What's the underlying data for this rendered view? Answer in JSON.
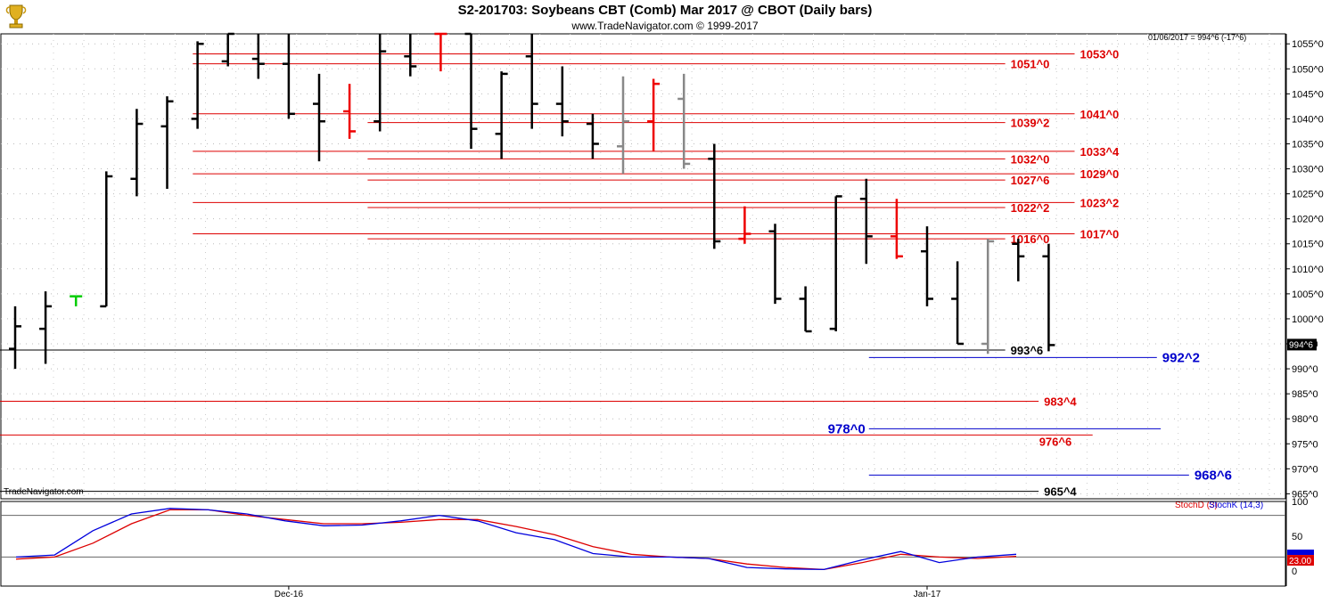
{
  "header": {
    "title": "S2-201703:  Soybeans CBT (Comb) Mar 2017 @ CBOT  (Daily bars)",
    "subtitle": "www.TradeNavigator.com © 1999-2017",
    "readout": "01/06/2017 = 994^6 (-17^6)",
    "watermark": "TradeNavigator.com",
    "logo": "trophy-icon"
  },
  "colors": {
    "up": "#000000",
    "red": "#ee0000",
    "grey": "#888888",
    "green": "#00cc00",
    "level_red": "#dd0000",
    "level_blue": "#0000cc",
    "stochD": "#dd0000",
    "stochK": "#0000dd"
  },
  "chart_data": {
    "type": "ohlc",
    "price_axis": {
      "min": 964,
      "max": 1057,
      "ticks": [
        "1055^0",
        "1050^0",
        "1045^0",
        "1040^0",
        "1035^0",
        "1030^0",
        "1025^0",
        "1020^0",
        "1015^0",
        "1010^0",
        "1005^0",
        "1000^0",
        "995^0",
        "990^0",
        "985^0",
        "980^0",
        "975^0",
        "970^0",
        "965^0"
      ],
      "tick_values": [
        1055,
        1050,
        1045,
        1040,
        1035,
        1030,
        1025,
        1020,
        1015,
        1010,
        1005,
        1000,
        995,
        990,
        985,
        980,
        975,
        970,
        965
      ]
    },
    "current_price_label": "994^6",
    "x_labels": [
      {
        "label": "Dec-16",
        "bar": 9
      },
      {
        "label": "Jan-17",
        "bar": 30
      }
    ],
    "bars": [
      {
        "o": 994,
        "h": 1002.5,
        "l": 990,
        "c": 998.5,
        "color": "black"
      },
      {
        "o": 998,
        "h": 1005.5,
        "l": 991,
        "c": 1002.5,
        "color": "black"
      },
      {
        "o": 1004.5,
        "h": 1004.5,
        "l": 1002.5,
        "c": 1004.5,
        "color": "green"
      },
      {
        "o": 1002.5,
        "h": 1029.5,
        "l": 1002.5,
        "c": 1028.5,
        "color": "black"
      },
      {
        "o": 1028,
        "h": 1042,
        "l": 1024.5,
        "c": 1039,
        "color": "black"
      },
      {
        "o": 1038.5,
        "h": 1044.5,
        "l": 1026,
        "c": 1043.5,
        "color": "black"
      },
      {
        "o": 1040,
        "h": 1055.5,
        "l": 1038,
        "c": 1055,
        "color": "black"
      },
      {
        "o": 1051.5,
        "h": 1057,
        "l": 1050.5,
        "c": 1057,
        "color": "black"
      },
      {
        "o": 1052,
        "h": 1057,
        "l": 1048,
        "c": 1051,
        "color": "black"
      },
      {
        "o": 1051,
        "h": 1057,
        "l": 1040,
        "c": 1041,
        "color": "black"
      },
      {
        "o": 1043,
        "h": 1049,
        "l": 1031.5,
        "c": 1039.5,
        "color": "black"
      },
      {
        "o": 1041.5,
        "h": 1047,
        "l": 1036,
        "c": 1037.5,
        "color": "red"
      },
      {
        "o": 1039.5,
        "h": 1057,
        "l": 1037.5,
        "c": 1053.5,
        "color": "black"
      },
      {
        "o": 1052.5,
        "h": 1057,
        "l": 1048.5,
        "c": 1050.5,
        "color": "black"
      },
      {
        "o": 1057,
        "h": 1057,
        "l": 1049.5,
        "c": 1057,
        "color": "red"
      },
      {
        "o": 1057,
        "h": 1057,
        "l": 1034,
        "c": 1038,
        "color": "black"
      },
      {
        "o": 1037,
        "h": 1049.5,
        "l": 1032,
        "c": 1049,
        "color": "black"
      },
      {
        "o": 1052.5,
        "h": 1057,
        "l": 1038,
        "c": 1043,
        "color": "black"
      },
      {
        "o": 1043,
        "h": 1050.5,
        "l": 1036.5,
        "c": 1039.5,
        "color": "black"
      },
      {
        "o": 1039,
        "h": 1041,
        "l": 1032,
        "c": 1035,
        "color": "black"
      },
      {
        "o": 1034.5,
        "h": 1048.5,
        "l": 1029,
        "c": 1039.5,
        "color": "grey"
      },
      {
        "o": 1039.5,
        "h": 1048,
        "l": 1033.5,
        "c": 1047,
        "color": "red"
      },
      {
        "o": 1044,
        "h": 1049,
        "l": 1030,
        "c": 1031,
        "color": "grey"
      },
      {
        "o": 1032,
        "h": 1035,
        "l": 1014,
        "c": 1015.5,
        "color": "black"
      },
      {
        "o": 1016,
        "h": 1022.5,
        "l": 1015,
        "c": 1017,
        "color": "red"
      },
      {
        "o": 1017.5,
        "h": 1019,
        "l": 1003,
        "c": 1004,
        "color": "black"
      },
      {
        "o": 1004,
        "h": 1006.5,
        "l": 997.5,
        "c": 997.5,
        "color": "black"
      },
      {
        "o": 998,
        "h": 1024.5,
        "l": 997.5,
        "c": 1024.5,
        "color": "black"
      },
      {
        "o": 1024,
        "h": 1028,
        "l": 1011,
        "c": 1016.5,
        "color": "black"
      },
      {
        "o": 1016.5,
        "h": 1024,
        "l": 1012,
        "c": 1012.5,
        "color": "red"
      },
      {
        "o": 1013.5,
        "h": 1018.5,
        "l": 1002.5,
        "c": 1004,
        "color": "black"
      },
      {
        "o": 1004,
        "h": 1011.5,
        "l": 995,
        "c": 995,
        "color": "black"
      },
      {
        "o": 995,
        "h": 1016,
        "l": 993,
        "c": 1015.5,
        "color": "grey"
      },
      {
        "o": 1015,
        "h": 1016,
        "l": 1007.5,
        "c": 1012.5,
        "color": "black"
      },
      {
        "o": 1012.5,
        "h": 1015,
        "l": 993.5,
        "c": 994.75,
        "color": "black"
      }
    ],
    "levels": [
      {
        "price": 1053,
        "label": "1053^0",
        "color": "red",
        "x0": 0.15,
        "x1": 0.836,
        "label_side": "outside"
      },
      {
        "price": 1051,
        "label": "1051^0",
        "color": "red",
        "x0": 0.15,
        "x1": 0.782,
        "label_side": "inside"
      },
      {
        "price": 1041,
        "label": "1041^0",
        "color": "red",
        "x0": 0.15,
        "x1": 0.836,
        "label_side": "outside"
      },
      {
        "price": 1039.25,
        "label": "1039^2",
        "color": "red",
        "x0": 0.286,
        "x1": 0.782,
        "label_side": "inside"
      },
      {
        "price": 1033.5,
        "label": "1033^4",
        "color": "red",
        "x0": 0.15,
        "x1": 0.836,
        "label_side": "outside"
      },
      {
        "price": 1032,
        "label": "1032^0",
        "color": "red",
        "x0": 0.286,
        "x1": 0.782,
        "label_side": "inside"
      },
      {
        "price": 1029,
        "label": "1029^0",
        "color": "red",
        "x0": 0.15,
        "x1": 0.836,
        "label_side": "outside"
      },
      {
        "price": 1027.75,
        "label": "1027^6",
        "color": "red",
        "x0": 0.286,
        "x1": 0.782,
        "label_side": "inside"
      },
      {
        "price": 1023.25,
        "label": "1023^2",
        "color": "red",
        "x0": 0.15,
        "x1": 0.836,
        "label_side": "outside"
      },
      {
        "price": 1022.25,
        "label": "1022^2",
        "color": "red",
        "x0": 0.286,
        "x1": 0.782,
        "label_side": "inside"
      },
      {
        "price": 1017,
        "label": "1017^0",
        "color": "red",
        "x0": 0.15,
        "x1": 0.836,
        "label_side": "outside"
      },
      {
        "price": 1016,
        "label": "1016^0",
        "color": "red",
        "x0": 0.286,
        "x1": 0.782,
        "label_side": "inside"
      },
      {
        "price": 993.75,
        "label": "993^6",
        "color": "black",
        "x0": 0,
        "x1": 0.782,
        "label_side": "inside"
      },
      {
        "price": 992.25,
        "label": "992^2",
        "color": "blue",
        "x0": 0.676,
        "x1": 0.9,
        "label_side": "outside"
      },
      {
        "price": 983.5,
        "label": "983^4",
        "color": "red",
        "x0": 0,
        "x1": 0.808,
        "label_side": "outside"
      },
      {
        "price": 978,
        "label": "978^0",
        "color": "blue",
        "x0": 0.676,
        "x1": 0.903,
        "label_side": "before"
      },
      {
        "price": 976.75,
        "label": "976^6",
        "color": "red",
        "x0": 0,
        "x1": 0.85,
        "label_side": "outside_low"
      },
      {
        "price": 968.75,
        "label": "968^6",
        "color": "blue",
        "x0": 0.676,
        "x1": 0.925,
        "label_side": "outside"
      },
      {
        "price": 965.5,
        "label": "965^4",
        "color": "black",
        "x0": 0,
        "x1": 0.808,
        "label_side": "outside"
      }
    ],
    "stochastic": {
      "labels": {
        "d": "StochD (3)",
        "k": "StochK (14,3)"
      },
      "axis_ticks": [
        "100",
        "50",
        "0"
      ],
      "level_lines": [
        80,
        20
      ],
      "current_value": "23.00",
      "stochK": [
        20,
        23,
        58,
        82,
        90,
        88,
        82,
        72,
        65,
        66,
        72,
        80,
        72,
        55,
        45,
        25,
        20,
        20,
        18,
        5,
        3,
        2,
        16,
        28,
        12,
        20,
        24
      ],
      "stochD": [
        17,
        20,
        40,
        68,
        88,
        88,
        80,
        74,
        68,
        68,
        70,
        74,
        74,
        64,
        52,
        35,
        24,
        20,
        18,
        10,
        5,
        2,
        12,
        24,
        20,
        18,
        21
      ]
    }
  }
}
